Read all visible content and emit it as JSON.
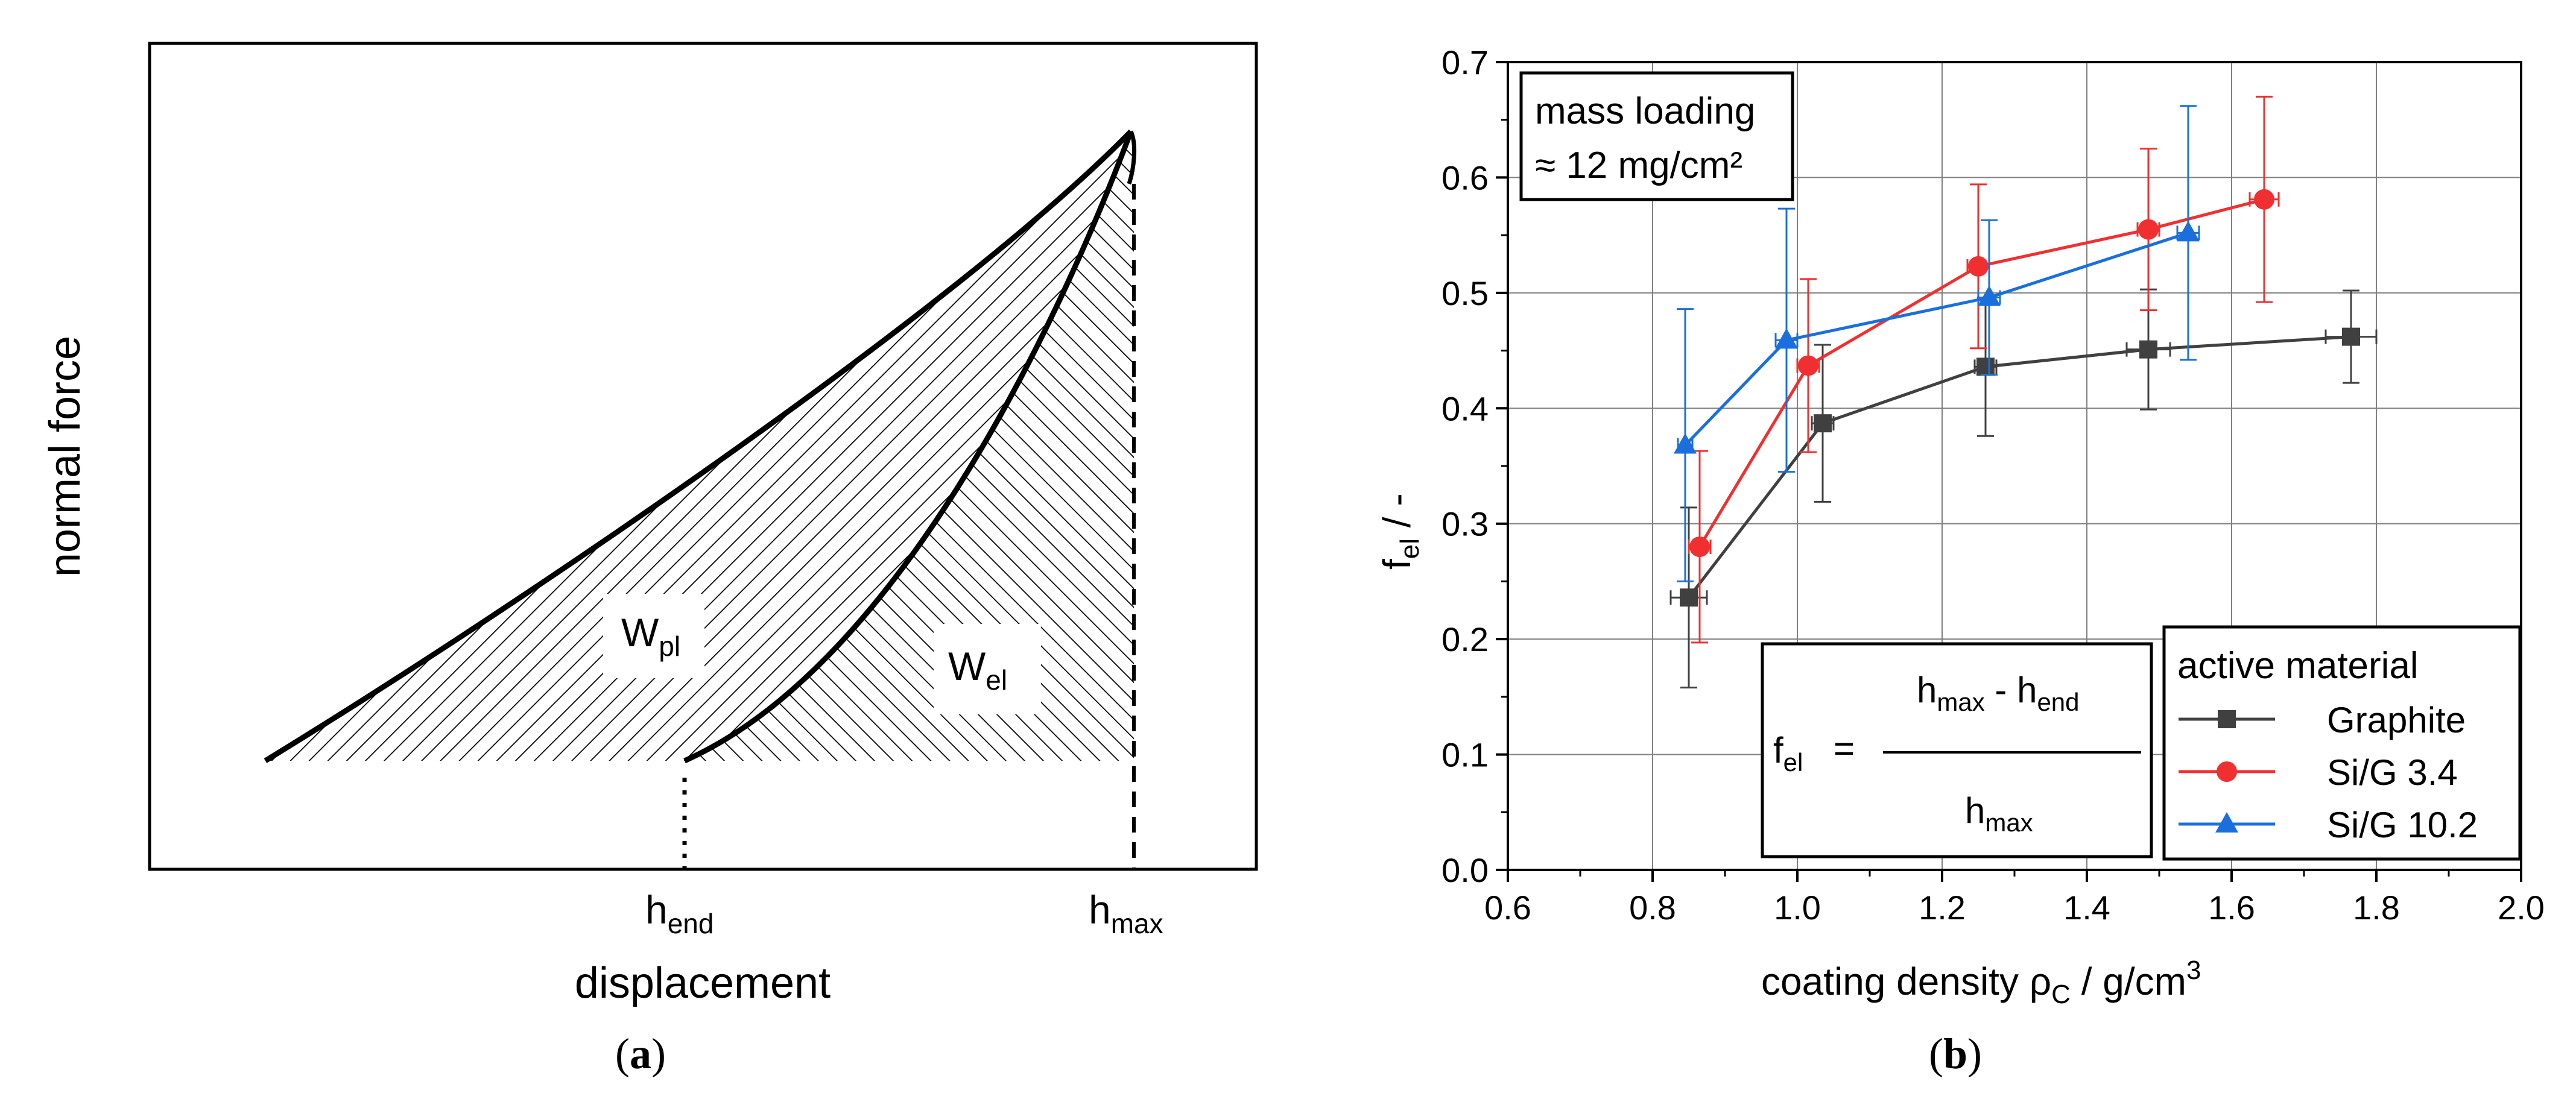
{
  "colors": {
    "graphite": "#404040",
    "sig34": "#f03030",
    "sig102": "#1a6fdc",
    "grid": "#808080",
    "axis": "#000000"
  },
  "panel_a": {
    "ylabel": "normal force",
    "xlabel": "displacement",
    "h_end": {
      "base": "h",
      "sub": "end"
    },
    "h_max": {
      "base": "h",
      "sub": "max"
    },
    "w_pl": {
      "base": "W",
      "sub": "pl"
    },
    "w_el": {
      "base": "W",
      "sub": "el"
    },
    "caption": "a"
  },
  "panel_b": {
    "caption": "b",
    "box_line1": "mass loading",
    "box_line2": "≈ 12 mg/cm²",
    "formula": {
      "lhs_base": "f",
      "lhs_sub": "el",
      "eq": "=",
      "num_a": "h",
      "num_a_sub": "max",
      "minus": "-",
      "num_b": "h",
      "num_b_sub": "end",
      "den": "h",
      "den_sub": "max"
    },
    "ylabel": {
      "base": "f",
      "sub": "el",
      "unit": "/  -"
    },
    "xlabel": {
      "pre": "coating density ρ",
      "sub": "C",
      "mid": "  /  g/cm",
      "sup": "3"
    }
  },
  "chart_data": {
    "type": "scatter",
    "xlim": [
      0.6,
      2.0
    ],
    "ylim": [
      0.0,
      0.7
    ],
    "xticks": [
      "0.6",
      "0.8",
      "1.0",
      "1.2",
      "1.4",
      "1.6",
      "1.8",
      "2.0"
    ],
    "yticks": [
      "0.0",
      "0.1",
      "0.2",
      "0.3",
      "0.4",
      "0.5",
      "0.6",
      "0.7"
    ],
    "grid": true,
    "legend_title": "active material",
    "legend_position": "bottom-right",
    "series": [
      {
        "name": "Graphite",
        "marker": "square",
        "x": [
          0.85,
          1.035,
          1.26,
          1.485,
          1.765
        ],
        "y": [
          0.236,
          0.387,
          0.436,
          0.451,
          0.462
        ],
        "xerr": [
          0.025,
          0.015,
          0.015,
          0.03,
          0.035
        ],
        "yerr": [
          0.078,
          0.068,
          0.06,
          0.052,
          0.04
        ]
      },
      {
        "name": "Si/G   3.4",
        "marker": "circle",
        "x": [
          0.865,
          1.015,
          1.25,
          1.485,
          1.645
        ],
        "y": [
          0.28,
          0.437,
          0.523,
          0.555,
          0.581
        ],
        "xerr": [
          0.015,
          0.015,
          0.015,
          0.015,
          0.02
        ],
        "yerr": [
          0.083,
          0.075,
          0.071,
          0.07,
          0.089
        ]
      },
      {
        "name": "Si/G 10.2",
        "marker": "triangle",
        "x": [
          0.845,
          0.985,
          1.265,
          1.54
        ],
        "y": [
          0.368,
          0.459,
          0.496,
          0.552
        ],
        "xerr": [
          0.01,
          0.015,
          0.015,
          0.015
        ],
        "yerr": [
          0.118,
          0.114,
          0.067,
          0.11
        ]
      }
    ]
  }
}
